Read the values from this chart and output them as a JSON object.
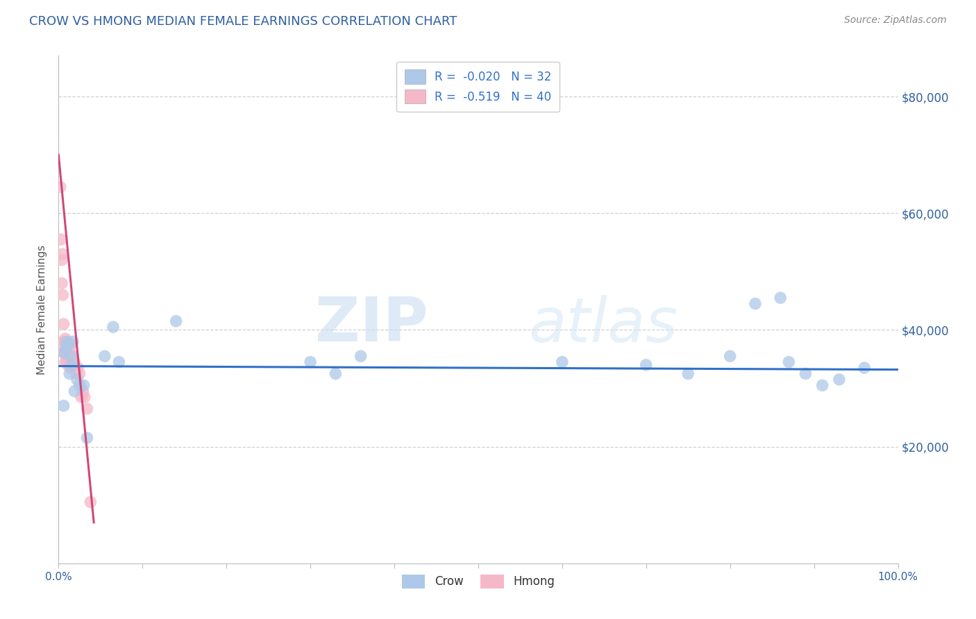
{
  "title": "CROW VS HMONG MEDIAN FEMALE EARNINGS CORRELATION CHART",
  "source": "Source: ZipAtlas.com",
  "ylabel": "Median Female Earnings",
  "xlim": [
    0.0,
    1.0
  ],
  "ylim": [
    0,
    87000
  ],
  "ytick_labels": [
    "$20,000",
    "$40,000",
    "$60,000",
    "$80,000"
  ],
  "ytick_values": [
    20000,
    40000,
    60000,
    80000
  ],
  "crow_R": "-0.020",
  "crow_N": "32",
  "hmong_R": "-0.519",
  "hmong_N": "40",
  "crow_color": "#adc8e8",
  "hmong_color": "#f5b8c8",
  "crow_line_color": "#3070c8",
  "hmong_line_color": "#d04878",
  "legend_label_crow": "Crow",
  "legend_label_hmong": "Hmong",
  "crow_scatter_x": [
    0.006,
    0.007,
    0.009,
    0.01,
    0.011,
    0.013,
    0.014,
    0.016,
    0.017,
    0.019,
    0.022,
    0.025,
    0.03,
    0.034,
    0.055,
    0.065,
    0.072,
    0.14,
    0.3,
    0.33,
    0.36,
    0.6,
    0.7,
    0.75,
    0.8,
    0.83,
    0.86,
    0.87,
    0.89,
    0.91,
    0.93,
    0.96
  ],
  "crow_scatter_y": [
    27000,
    36000,
    37000,
    38000,
    37500,
    32500,
    35500,
    34000,
    38000,
    29500,
    31500,
    30500,
    30500,
    21500,
    35500,
    40500,
    34500,
    41500,
    34500,
    32500,
    35500,
    34500,
    34000,
    32500,
    35500,
    44500,
    45500,
    34500,
    32500,
    30500,
    31500,
    33500
  ],
  "hmong_scatter_x": [
    0.002,
    0.003,
    0.004,
    0.004,
    0.005,
    0.005,
    0.006,
    0.006,
    0.007,
    0.007,
    0.007,
    0.008,
    0.008,
    0.008,
    0.009,
    0.009,
    0.01,
    0.01,
    0.011,
    0.011,
    0.012,
    0.012,
    0.013,
    0.013,
    0.014,
    0.014,
    0.015,
    0.016,
    0.017,
    0.018,
    0.019,
    0.019,
    0.021,
    0.023,
    0.025,
    0.027,
    0.029,
    0.031,
    0.034,
    0.038
  ],
  "hmong_scatter_y": [
    64500,
    55500,
    52000,
    48000,
    46000,
    53000,
    41000,
    38000,
    36000,
    38000,
    36500,
    38500,
    36500,
    34500,
    37000,
    35500,
    35500,
    34500,
    35500,
    34000,
    36500,
    37500,
    35500,
    36500,
    33500,
    35500,
    37500,
    35500,
    35500,
    34500,
    33500,
    34500,
    32500,
    33500,
    32500,
    28500,
    29500,
    28500,
    26500,
    10500
  ],
  "crow_trend_x": [
    0.0,
    1.0
  ],
  "crow_trend_y": [
    33800,
    33200
  ],
  "hmong_trend_x": [
    0.0,
    0.042
  ],
  "hmong_trend_y": [
    70000,
    7000
  ],
  "grid_color": "#d0d0d0",
  "bg_color": "#ffffff",
  "watermark_zip": "ZIP",
  "watermark_atlas": "atlas",
  "title_color": "#3060a0",
  "source_color": "#888888",
  "axis_label_color": "#555555",
  "tick_color": "#3060a0"
}
